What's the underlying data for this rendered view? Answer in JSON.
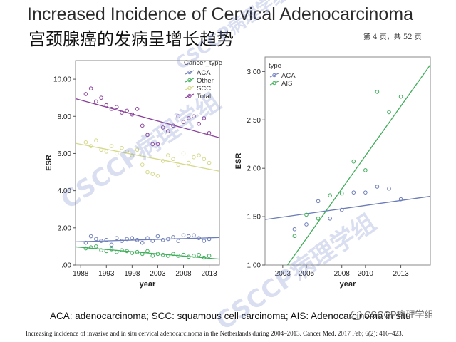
{
  "title_en": "Increased Incidence of Cervical Adenocarcinoma",
  "title_cn": "宫颈腺癌的发病呈增长趋势",
  "page_indicator": "第 4 页，共 52 页",
  "footnote_abbrev": "ACA: adenocarcinoma; SCC: squamous cell carcinoma; AIS: Adenocarcinoma in situ",
  "citation": "Increasing incidence of invasive and in situ cervical adenocarcinoma in the Netherlands during 2004–2013. Cancer Med. 2017 Feb; 6(2): 416–423.",
  "watermark": {
    "main": "CSCCP病理学组",
    "brand": "CSCCP病理学组",
    "brand_icon": "wechat-icon"
  },
  "chart_data": [
    {
      "type": "scatter",
      "xlabel": "year",
      "ylabel": "ESR",
      "xlim": [
        1987,
        2015
      ],
      "ylim": [
        0,
        11
      ],
      "xticks": [
        1988,
        1993,
        1998,
        2003,
        2008,
        2013
      ],
      "yticks": [
        0,
        2,
        4,
        6,
        8,
        10
      ],
      "ytick_labels": [
        ".00",
        "2.00",
        "4.00",
        "6.00",
        "8.00",
        "10.00"
      ],
      "legend_title": "Cancer_type",
      "legend_position": "top-right",
      "series": [
        {
          "name": "ACA",
          "color": "#6b7cb8",
          "marker": "open-circle",
          "x": [
            1989,
            1990,
            1991,
            1992,
            1993,
            1994,
            1995,
            1996,
            1997,
            1998,
            1999,
            2000,
            2001,
            2002,
            2003,
            2004,
            2005,
            2006,
            2007,
            2008,
            2009,
            2010,
            2011,
            2012,
            2013
          ],
          "y": [
            1.2,
            1.55,
            1.4,
            1.3,
            1.35,
            1.1,
            1.45,
            1.3,
            1.4,
            1.45,
            1.35,
            1.2,
            1.45,
            1.3,
            1.55,
            1.35,
            1.4,
            1.5,
            1.3,
            1.6,
            1.55,
            1.6,
            1.45,
            1.3,
            1.4
          ],
          "fit": [
            [
              1987,
              1.25
            ],
            [
              2015,
              1.48
            ]
          ]
        },
        {
          "name": "Other",
          "color": "#3fae5a",
          "marker": "open-circle",
          "x": [
            1989,
            1990,
            1991,
            1992,
            1993,
            1994,
            1995,
            1996,
            1997,
            1998,
            1999,
            2000,
            2001,
            2002,
            2003,
            2004,
            2005,
            2006,
            2007,
            2008,
            2009,
            2010,
            2011,
            2012,
            2013
          ],
          "y": [
            0.9,
            0.95,
            1.0,
            0.8,
            0.75,
            0.85,
            0.7,
            0.8,
            0.75,
            0.65,
            0.7,
            0.6,
            0.75,
            0.5,
            0.6,
            0.55,
            0.5,
            0.6,
            0.5,
            0.55,
            0.45,
            0.5,
            0.55,
            0.4,
            0.5
          ],
          "fit": [
            [
              1987,
              0.98
            ],
            [
              2015,
              0.32
            ]
          ]
        },
        {
          "name": "SCC",
          "color": "#d5d98a",
          "marker": "open-circle",
          "x": [
            1989,
            1990,
            1991,
            1992,
            1993,
            1994,
            1995,
            1996,
            1997,
            1998,
            1999,
            2000,
            2001,
            2002,
            2003,
            2004,
            2005,
            2006,
            2007,
            2008,
            2009,
            2010,
            2011,
            2012,
            2013
          ],
          "y": [
            6.6,
            6.4,
            6.7,
            6.2,
            6.1,
            6.4,
            6.0,
            6.3,
            6.1,
            5.9,
            6.2,
            5.4,
            5.0,
            4.9,
            4.8,
            5.6,
            5.9,
            5.7,
            5.4,
            6.0,
            5.5,
            5.8,
            5.9,
            5.7,
            5.5
          ],
          "fit": [
            [
              1987,
              6.55
            ],
            [
              2015,
              5.05
            ]
          ]
        },
        {
          "name": "Total",
          "color": "#8a3f9a",
          "marker": "open-circle",
          "x": [
            1989,
            1990,
            1991,
            1992,
            1993,
            1994,
            1995,
            1996,
            1997,
            1998,
            1999,
            2000,
            2001,
            2002,
            2003,
            2004,
            2005,
            2006,
            2007,
            2008,
            2009,
            2010,
            2011,
            2012,
            2013
          ],
          "y": [
            9.2,
            9.5,
            8.8,
            9.0,
            8.6,
            8.4,
            8.5,
            8.2,
            8.3,
            8.1,
            8.4,
            7.5,
            7.0,
            6.5,
            6.5,
            7.4,
            7.2,
            7.5,
            8.0,
            7.7,
            7.9,
            8.0,
            7.6,
            7.9,
            7.1
          ],
          "fit": [
            [
              1987,
              8.95
            ],
            [
              2015,
              6.85
            ]
          ]
        }
      ]
    },
    {
      "type": "scatter",
      "xlabel": "year",
      "ylabel": "ESR",
      "xlim": [
        2001.5,
        2015.5
      ],
      "ylim": [
        1.0,
        3.15
      ],
      "xticks": [
        2003,
        2005,
        2008,
        2010,
        2013
      ],
      "yticks": [
        1.0,
        1.5,
        2.0,
        2.5,
        3.0
      ],
      "ytick_labels": [
        "1.00",
        "1.50",
        "2.00",
        "2.50",
        "3.00"
      ],
      "legend_title": "type",
      "legend_position": "top-left",
      "series": [
        {
          "name": "ACA",
          "color": "#6b7cb8",
          "marker": "open-circle",
          "x": [
            2004,
            2005,
            2006,
            2007,
            2008,
            2009,
            2010,
            2011,
            2012,
            2013
          ],
          "y": [
            1.37,
            1.42,
            1.66,
            1.48,
            1.57,
            1.75,
            1.75,
            1.81,
            1.79,
            1.68
          ],
          "fit": [
            [
              2001.5,
              1.47
            ],
            [
              2015.5,
              1.71
            ]
          ]
        },
        {
          "name": "AIS",
          "color": "#3fae5a",
          "marker": "open-circle",
          "x": [
            2004,
            2005,
            2006,
            2007,
            2008,
            2009,
            2010,
            2011,
            2012,
            2013
          ],
          "y": [
            1.3,
            1.52,
            1.48,
            1.72,
            1.74,
            2.07,
            1.98,
            2.79,
            2.58,
            2.74
          ],
          "fit": [
            [
              2003.4,
              1.0
            ],
            [
              2015.5,
              3.07
            ]
          ]
        }
      ]
    }
  ]
}
